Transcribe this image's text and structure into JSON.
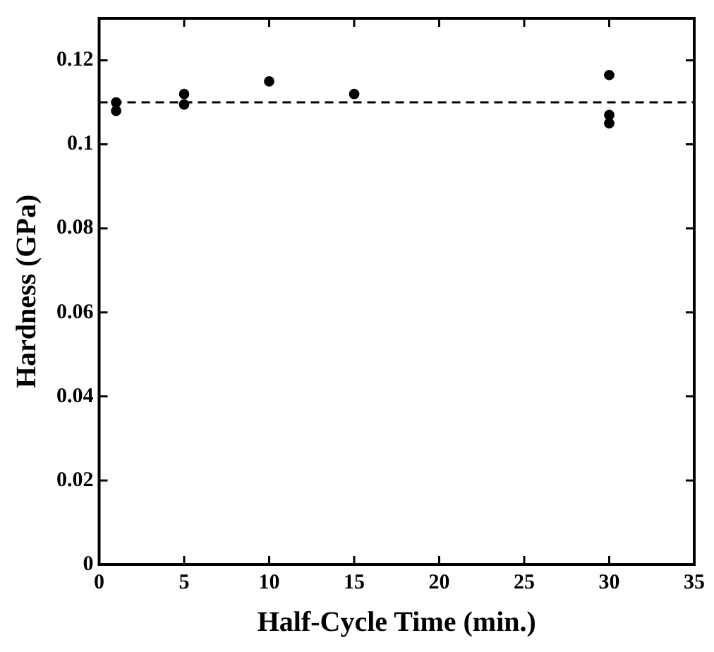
{
  "chart_data": {
    "type": "scatter",
    "xlabel": "Half-Cycle Time (min.)",
    "ylabel": "Hardness (GPa)",
    "x": [
      1,
      1,
      5,
      5,
      10,
      15,
      30,
      30,
      30
    ],
    "values": [
      0.11,
      0.108,
      0.112,
      0.1095,
      0.115,
      0.112,
      0.1165,
      0.107,
      0.105
    ],
    "color": "#000000",
    "marker": "circle",
    "xlim": [
      0,
      35
    ],
    "xticks": [
      0,
      5,
      10,
      15,
      20,
      25,
      30,
      35
    ],
    "ylim": [
      0,
      0.13
    ],
    "yticks": [
      0,
      0.02,
      0.04,
      0.06,
      0.08,
      0.1,
      0.12
    ],
    "ref_lines": [
      {
        "axis": "y",
        "value": 0.11,
        "label": null,
        "color": "#000000",
        "line_style": "dashed"
      }
    ],
    "grid": false,
    "legend": false
  }
}
